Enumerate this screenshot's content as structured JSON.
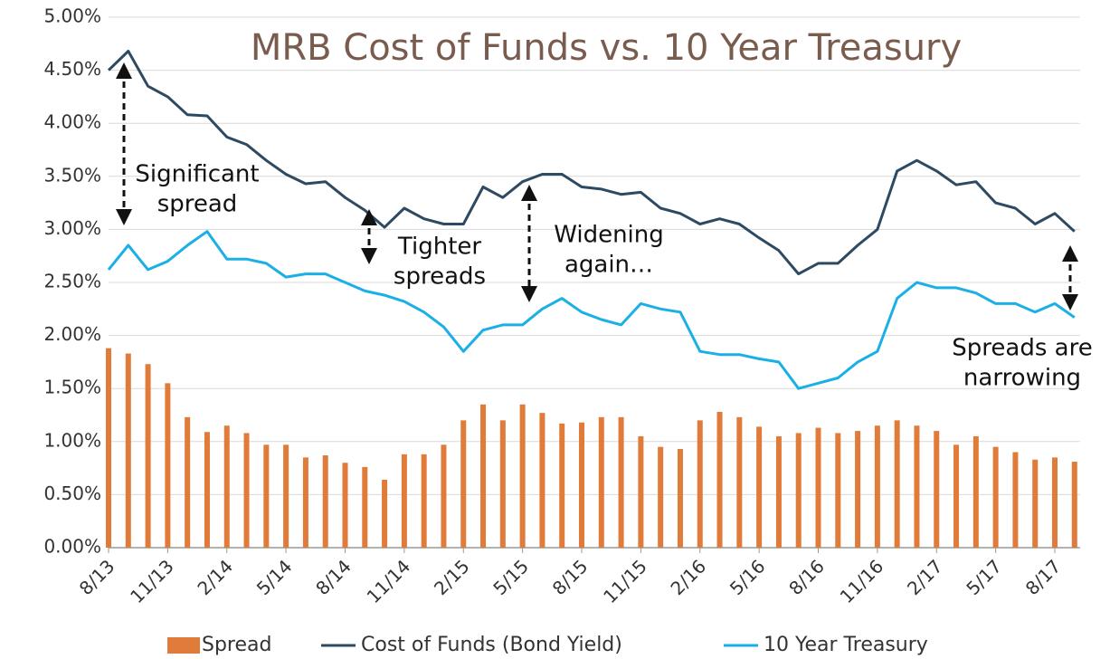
{
  "chart_data": {
    "type": "line-bar",
    "title": "MRB Cost of Funds vs. 10 Year Treasury",
    "categories": [
      "8/13",
      null,
      null,
      "11/13",
      null,
      null,
      "2/14",
      null,
      null,
      "5/14",
      null,
      null,
      "8/14",
      null,
      null,
      "11/14",
      null,
      null,
      "2/15",
      null,
      null,
      "5/15",
      null,
      null,
      "8/15",
      null,
      null,
      "11/15",
      null,
      null,
      "2/16",
      null,
      null,
      "5/16",
      null,
      null,
      "8/16",
      null,
      null,
      "11/16",
      null,
      null,
      "2/17",
      null,
      null,
      "5/17",
      null,
      null,
      "8/17",
      null
    ],
    "series": [
      {
        "name": "Spread",
        "kind": "bar",
        "color": "#e07b39",
        "values": [
          1.88,
          1.83,
          1.73,
          1.55,
          1.23,
          1.09,
          1.15,
          1.08,
          0.97,
          0.97,
          0.85,
          0.87,
          0.8,
          0.76,
          0.64,
          0.88,
          0.88,
          0.97,
          1.2,
          1.35,
          1.2,
          1.35,
          1.27,
          1.17,
          1.18,
          1.23,
          1.23,
          1.05,
          0.95,
          0.93,
          1.2,
          1.28,
          1.23,
          1.14,
          1.05,
          1.08,
          1.13,
          1.08,
          1.1,
          1.15,
          1.2,
          1.15,
          1.1,
          0.97,
          1.05,
          0.95,
          0.9,
          0.83,
          0.85,
          0.81
        ]
      },
      {
        "name": "Cost of Funds (Bond Yield)",
        "kind": "line",
        "color": "#2e4a62",
        "values": [
          4.5,
          4.68,
          4.35,
          4.25,
          4.08,
          4.07,
          3.87,
          3.8,
          3.65,
          3.52,
          3.43,
          3.45,
          3.3,
          3.18,
          3.02,
          3.2,
          3.1,
          3.05,
          3.05,
          3.4,
          3.3,
          3.45,
          3.52,
          3.52,
          3.4,
          3.38,
          3.33,
          3.35,
          3.2,
          3.15,
          3.05,
          3.1,
          3.05,
          2.92,
          2.8,
          2.58,
          2.68,
          2.68,
          2.85,
          3.0,
          3.55,
          3.65,
          3.55,
          3.42,
          3.45,
          3.25,
          3.2,
          3.05,
          3.15,
          2.98
        ]
      },
      {
        "name": "10 Year Treasury",
        "kind": "line",
        "color": "#1ab0e6",
        "values": [
          2.62,
          2.85,
          2.62,
          2.7,
          2.85,
          2.98,
          2.72,
          2.72,
          2.68,
          2.55,
          2.58,
          2.58,
          2.5,
          2.42,
          2.38,
          2.32,
          2.22,
          2.08,
          1.85,
          2.05,
          2.1,
          2.1,
          2.25,
          2.35,
          2.22,
          2.15,
          2.1,
          2.3,
          2.25,
          2.22,
          1.85,
          1.82,
          1.82,
          1.78,
          1.75,
          1.5,
          1.55,
          1.6,
          1.75,
          1.85,
          2.35,
          2.5,
          2.45,
          2.45,
          2.4,
          2.3,
          2.3,
          2.22,
          2.3,
          2.17
        ]
      }
    ],
    "ylim": [
      0,
      5
    ],
    "yticks": [
      {
        "value": 0,
        "label": "0.00%"
      },
      {
        "value": 0.5,
        "label": "0.50%"
      },
      {
        "value": 1,
        "label": "1.00%"
      },
      {
        "value": 1.5,
        "label": "1.50%"
      },
      {
        "value": 2,
        "label": "2.00%"
      },
      {
        "value": 2.5,
        "label": "2.50%"
      },
      {
        "value": 3,
        "label": "3.00%"
      },
      {
        "value": 3.5,
        "label": "3.50%"
      },
      {
        "value": 4,
        "label": "4.00%"
      },
      {
        "value": 4.5,
        "label": "4.50%"
      },
      {
        "value": 5,
        "label": "5.00%"
      }
    ],
    "grid": true,
    "legend": "bottom",
    "annotations": [
      {
        "lines": [
          "Significant",
          "spread"
        ]
      },
      {
        "lines": [
          "Tighter",
          "spreads"
        ]
      },
      {
        "lines": [
          "Widening",
          "again…"
        ]
      },
      {
        "lines": [
          "Spreads are",
          "narrowing"
        ]
      }
    ]
  }
}
